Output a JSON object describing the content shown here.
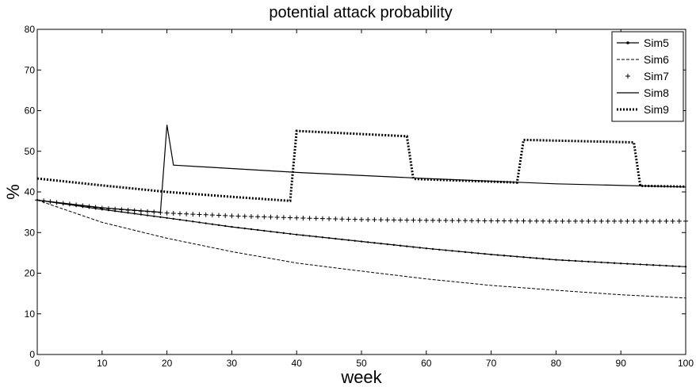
{
  "chart_data": {
    "type": "line",
    "title": "potential attack probability",
    "xlabel": "week",
    "ylabel": "%",
    "xlim": [
      0,
      100
    ],
    "ylim": [
      0,
      80
    ],
    "xticks": [
      0,
      10,
      20,
      30,
      40,
      50,
      60,
      70,
      80,
      90,
      100
    ],
    "yticks": [
      0,
      10,
      20,
      30,
      40,
      50,
      60,
      70,
      80
    ],
    "grid": false,
    "legend_position": "top-right",
    "series": [
      {
        "name": "Sim5",
        "style": "solid-dot-markers",
        "points": [
          [
            0,
            38
          ],
          [
            10,
            35.7
          ],
          [
            20,
            33.6
          ],
          [
            30,
            31.4
          ],
          [
            40,
            29.5
          ],
          [
            50,
            27.8
          ],
          [
            60,
            26.1
          ],
          [
            70,
            24.6
          ],
          [
            80,
            23.3
          ],
          [
            90,
            22.4
          ],
          [
            100,
            21.6
          ]
        ]
      },
      {
        "name": "Sim6",
        "style": "dashed",
        "points": [
          [
            0,
            38
          ],
          [
            10,
            32.5
          ],
          [
            20,
            28.6
          ],
          [
            30,
            25.3
          ],
          [
            40,
            22.5
          ],
          [
            50,
            20.5
          ],
          [
            60,
            18.6
          ],
          [
            70,
            17
          ],
          [
            80,
            15.8
          ],
          [
            90,
            14.7
          ],
          [
            100,
            13.9
          ]
        ]
      },
      {
        "name": "Sim7",
        "style": "plus-markers",
        "points": [
          [
            0,
            38
          ],
          [
            10,
            36
          ],
          [
            20,
            34.8
          ],
          [
            30,
            34.1
          ],
          [
            40,
            33.6
          ],
          [
            50,
            33.2
          ],
          [
            60,
            33
          ],
          [
            70,
            32.9
          ],
          [
            80,
            32.8
          ],
          [
            90,
            32.8
          ],
          [
            100,
            32.8
          ]
        ]
      },
      {
        "name": "Sim8",
        "style": "solid",
        "points": [
          [
            0,
            38
          ],
          [
            10,
            36.1
          ],
          [
            19,
            35
          ],
          [
            20,
            56.5
          ],
          [
            21,
            46.6
          ],
          [
            40,
            44.8
          ],
          [
            60,
            43.3
          ],
          [
            80,
            42
          ],
          [
            100,
            41.2
          ]
        ]
      },
      {
        "name": "Sim9",
        "style": "dotted-thick",
        "points": [
          [
            0,
            43.3
          ],
          [
            10,
            41.6
          ],
          [
            20,
            40
          ],
          [
            30,
            38.8
          ],
          [
            39,
            37.8
          ],
          [
            40,
            55
          ],
          [
            57,
            53.7
          ],
          [
            58,
            43.2
          ],
          [
            74,
            42.3
          ],
          [
            75,
            52.8
          ],
          [
            92,
            52.2
          ],
          [
            93,
            41.5
          ],
          [
            100,
            41.3
          ]
        ]
      }
    ]
  }
}
